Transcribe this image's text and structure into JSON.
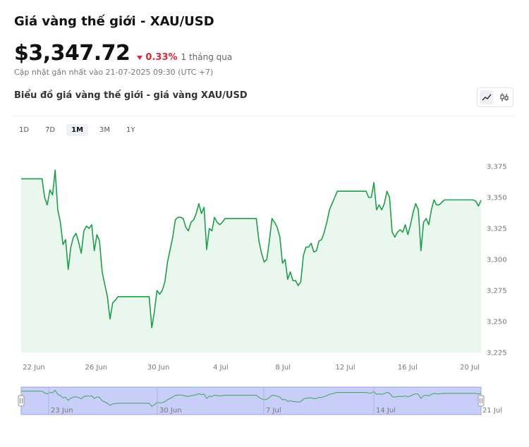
{
  "header": {
    "title": "Giá vàng thế giới - XAU/USD",
    "price": "$3,347.72",
    "change": "0.33%",
    "period": "1 tháng qua",
    "updated": "Cập nhật gần nhất vào 21-07-2025 09:30 (UTC +7)",
    "subtitle": "Biểu đồ giá vàng thế giới - giá vàng XAU/USD"
  },
  "controls": {
    "chart_types": [
      {
        "label": "line",
        "icon": "line-chart-icon",
        "active": true
      },
      {
        "label": "candles",
        "icon": "candlestick-icon",
        "active": false
      }
    ],
    "ranges": [
      "1D",
      "7D",
      "1M",
      "3M",
      "1Y"
    ],
    "active_range": "1M"
  },
  "colors": {
    "line": "#1e9e4a",
    "area": "#eaf7ee",
    "down": "#e0263a",
    "navigator_fill": "#c9cef8",
    "navigator_line": "#4aa86a"
  },
  "chart_data": {
    "type": "area",
    "series": [
      {
        "values": [
          3365,
          3365,
          3365,
          3365,
          3365,
          3365,
          3365,
          3365,
          3365,
          3350,
          3344,
          3356,
          3352,
          3372,
          3340,
          3330,
          3312,
          3316,
          3292,
          3310,
          3318,
          3321,
          3314,
          3305,
          3323,
          3327,
          3325,
          3328,
          3307,
          3320,
          3315,
          3290,
          3280,
          3270,
          3252,
          3265,
          3267,
          3270,
          3270,
          3270,
          3270,
          3270,
          3270,
          3270,
          3270,
          3270,
          3270,
          3270,
          3270,
          3270,
          3245,
          3258,
          3275,
          3272,
          3275,
          3282,
          3298,
          3308,
          3318,
          3332,
          3334,
          3334,
          3333,
          3326,
          3323,
          3330,
          3332,
          3337,
          3345,
          3337,
          3342,
          3308,
          3325,
          3323,
          3334,
          3330,
          3328,
          3330,
          3333,
          3333,
          3333,
          3333,
          3333,
          3333,
          3333,
          3333,
          3333,
          3333,
          3333,
          3333,
          3333,
          3315,
          3305,
          3298,
          3300,
          3315,
          3333,
          3330,
          3326,
          3318,
          3297,
          3300,
          3284,
          3290,
          3283,
          3283,
          3279,
          3282,
          3303,
          3310,
          3310,
          3313,
          3306,
          3307,
          3315,
          3316,
          3322,
          3330,
          3340,
          3345,
          3350,
          3355,
          3355,
          3355,
          3355,
          3355,
          3355,
          3355,
          3355,
          3355,
          3355,
          3355,
          3355,
          3350,
          3350,
          3362,
          3340,
          3344,
          3340,
          3345,
          3355,
          3350,
          3322,
          3318,
          3322,
          3324,
          3322,
          3328,
          3320,
          3328,
          3338,
          3345,
          3340,
          3307,
          3330,
          3333,
          3328,
          3340,
          3348,
          3344,
          3344,
          3346,
          3348,
          3348,
          3348,
          3348,
          3348,
          3348,
          3348,
          3348,
          3348,
          3348,
          3348,
          3348,
          3347,
          3343,
          3347.72
        ]
      }
    ],
    "x_tick_labels": [
      "22 Jun",
      "26 Jun",
      "30 Jun",
      "4 Jul",
      "8 Jul",
      "12 Jul",
      "16 Jul",
      "20 Jul"
    ],
    "y_ticks": [
      3225,
      3250,
      3275,
      3300,
      3325,
      3350,
      3375
    ],
    "y_tick_labels": [
      "3,225",
      "3,250",
      "3,275",
      "3,300",
      "3,325",
      "3,350",
      "3,375"
    ],
    "ylim": [
      3225,
      3375
    ],
    "navigator_labels": [
      "23 Jun",
      "30 Jun",
      "7 Jul",
      "14 Jul",
      "21 Jul"
    ],
    "grid": false
  }
}
